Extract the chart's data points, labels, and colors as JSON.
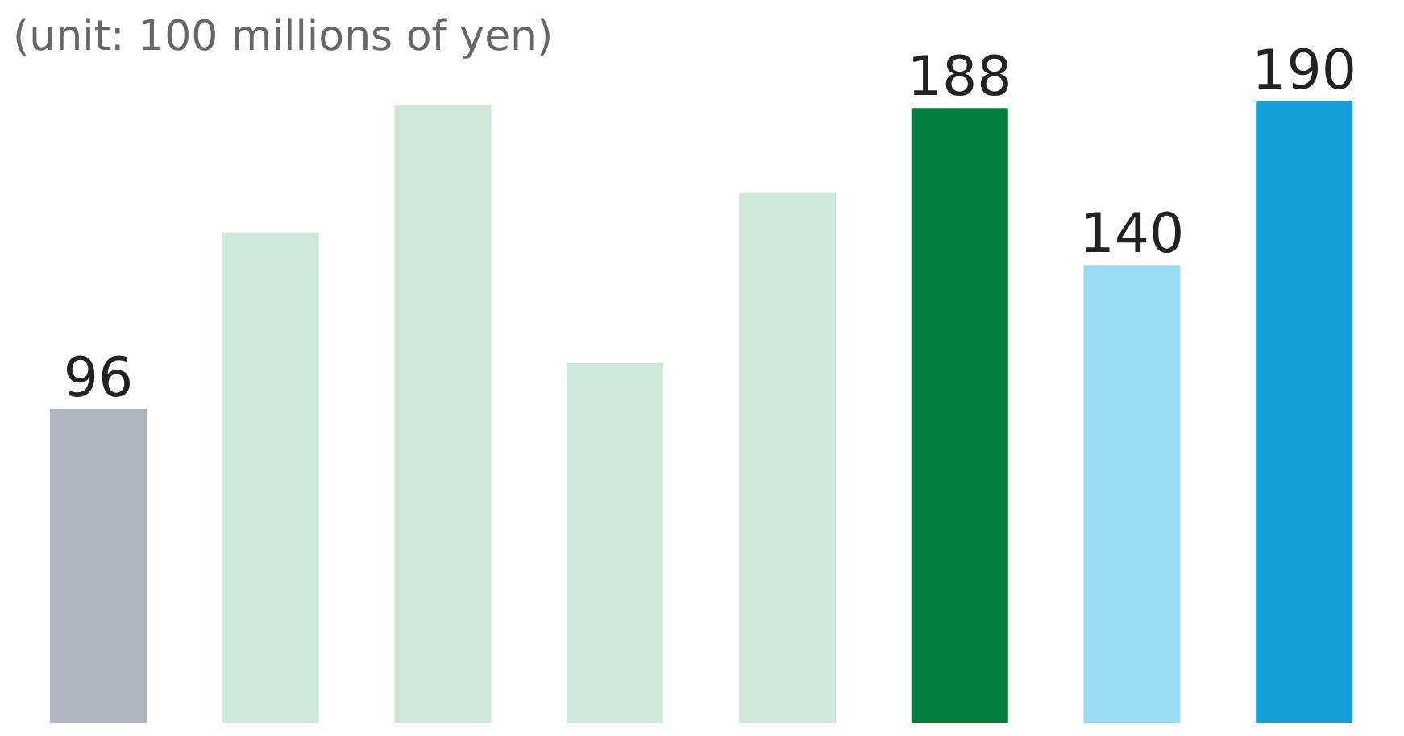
{
  "chart_data": {
    "type": "bar",
    "title": "(unit: 100 millions of yen)",
    "categories": [
      null,
      null,
      null,
      null,
      null,
      null,
      null,
      null
    ],
    "values": [
      96,
      150,
      189,
      110,
      162,
      188,
      140,
      190
    ],
    "colors": [
      "#adb6bf",
      "#cde8da",
      "#cde8da",
      "#cde8da",
      "#cde8da",
      "#007f3d",
      "#9adbf6",
      "#139fd7"
    ],
    "value_labels": [
      "96",
      null,
      null,
      null,
      null,
      "188",
      "140",
      "190"
    ]
  }
}
